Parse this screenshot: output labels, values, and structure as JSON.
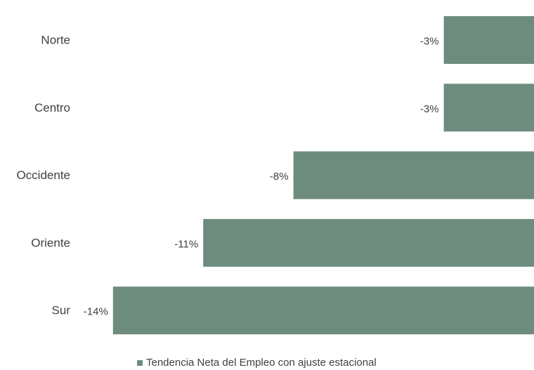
{
  "chart_data": {
    "type": "bar",
    "orientation": "horizontal",
    "categories": [
      "Norte",
      "Centro",
      "Occidente",
      "Oriente",
      "Sur"
    ],
    "series": [
      {
        "name": "Tendencia Neta del Empleo con ajuste estacional",
        "values": [
          -3,
          -3,
          -8,
          -11,
          -14
        ],
        "value_labels": [
          "-3%",
          "-3%",
          "-8%",
          "-11%",
          "-14%"
        ],
        "color": "#6d8c7e"
      }
    ],
    "xlim": [
      -14,
      0
    ],
    "grid": false,
    "legend_position": "bottom"
  }
}
